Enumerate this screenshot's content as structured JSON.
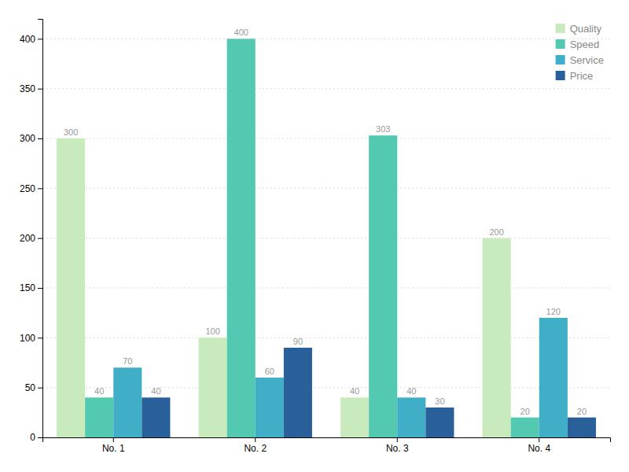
{
  "chart_data": {
    "type": "bar",
    "categories": [
      "No. 1",
      "No. 2",
      "No. 3",
      "No. 4"
    ],
    "series": [
      {
        "name": "Quality",
        "color": "#c8eabc",
        "values": [
          300,
          100,
          40,
          200
        ]
      },
      {
        "name": "Speed",
        "color": "#52c9b0",
        "values": [
          40,
          400,
          303,
          20
        ]
      },
      {
        "name": "Service",
        "color": "#41aec8",
        "values": [
          70,
          60,
          40,
          120
        ]
      },
      {
        "name": "Price",
        "color": "#2a6099",
        "values": [
          40,
          90,
          30,
          20
        ]
      }
    ],
    "ylim": [
      0,
      420
    ],
    "yticks": [
      0,
      50,
      100,
      150,
      200,
      250,
      300,
      350,
      400
    ],
    "grid": true,
    "legend": "upper right",
    "data_labels": true
  }
}
